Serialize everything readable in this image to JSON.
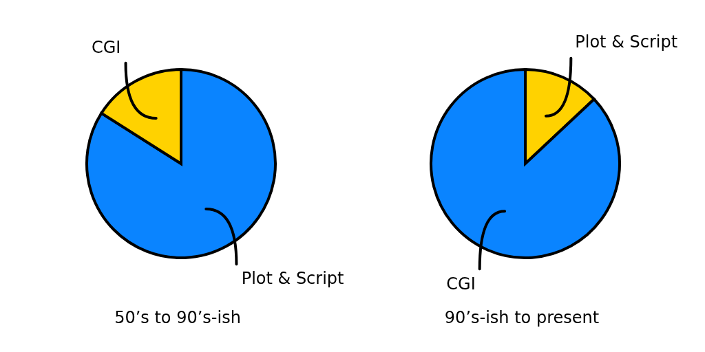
{
  "chart_data": [
    {
      "type": "pie",
      "title": "50’s to 90’s-ish",
      "categories": [
        "Plot & Script",
        "CGI"
      ],
      "values": [
        84,
        16
      ],
      "colors": [
        "#0a84ff",
        "#ffd200"
      ]
    },
    {
      "type": "pie",
      "title": "90’s-ish to present",
      "categories": [
        "Plot & Script",
        "CGI"
      ],
      "values": [
        13,
        87
      ],
      "colors": [
        "#ffd200",
        "#0a84ff"
      ]
    }
  ]
}
